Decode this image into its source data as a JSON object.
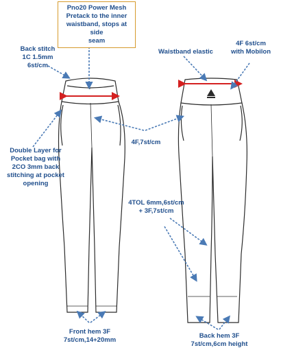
{
  "callouts": {
    "power_mesh": "Pno20 Power Mesh\nPretack to the inner\nwaistband, stops at side\nseam",
    "back_stitch": "Back stitch\n1C 1.5mm\n6st/cm",
    "waistband_elastic": "Waistband elastic",
    "mobilon": "4F 6st/cm\nwith Mobilon",
    "side_seam": "4F,7st/cm",
    "pocket_bag": "Double Layer for\nPocket bag with\n2CO 3mm back\nstitching at pocket\nopening",
    "inseam": "4TOL 6mm,6st/cm\n+ 3F,7st/cm",
    "front_hem": "Front hem 3F\n7st/cm,14+20mm",
    "back_hem": "Back hem 3F\n7st/cm,6cm height"
  },
  "colors": {
    "outline": "#2b2b2b",
    "callout_text": "#1f4e8c",
    "arrow": "#4a7ab5",
    "waistband_marker": "#d42020",
    "box_border": "#d69a2c"
  },
  "icons": {
    "back_logo": "delta-logo-icon"
  }
}
